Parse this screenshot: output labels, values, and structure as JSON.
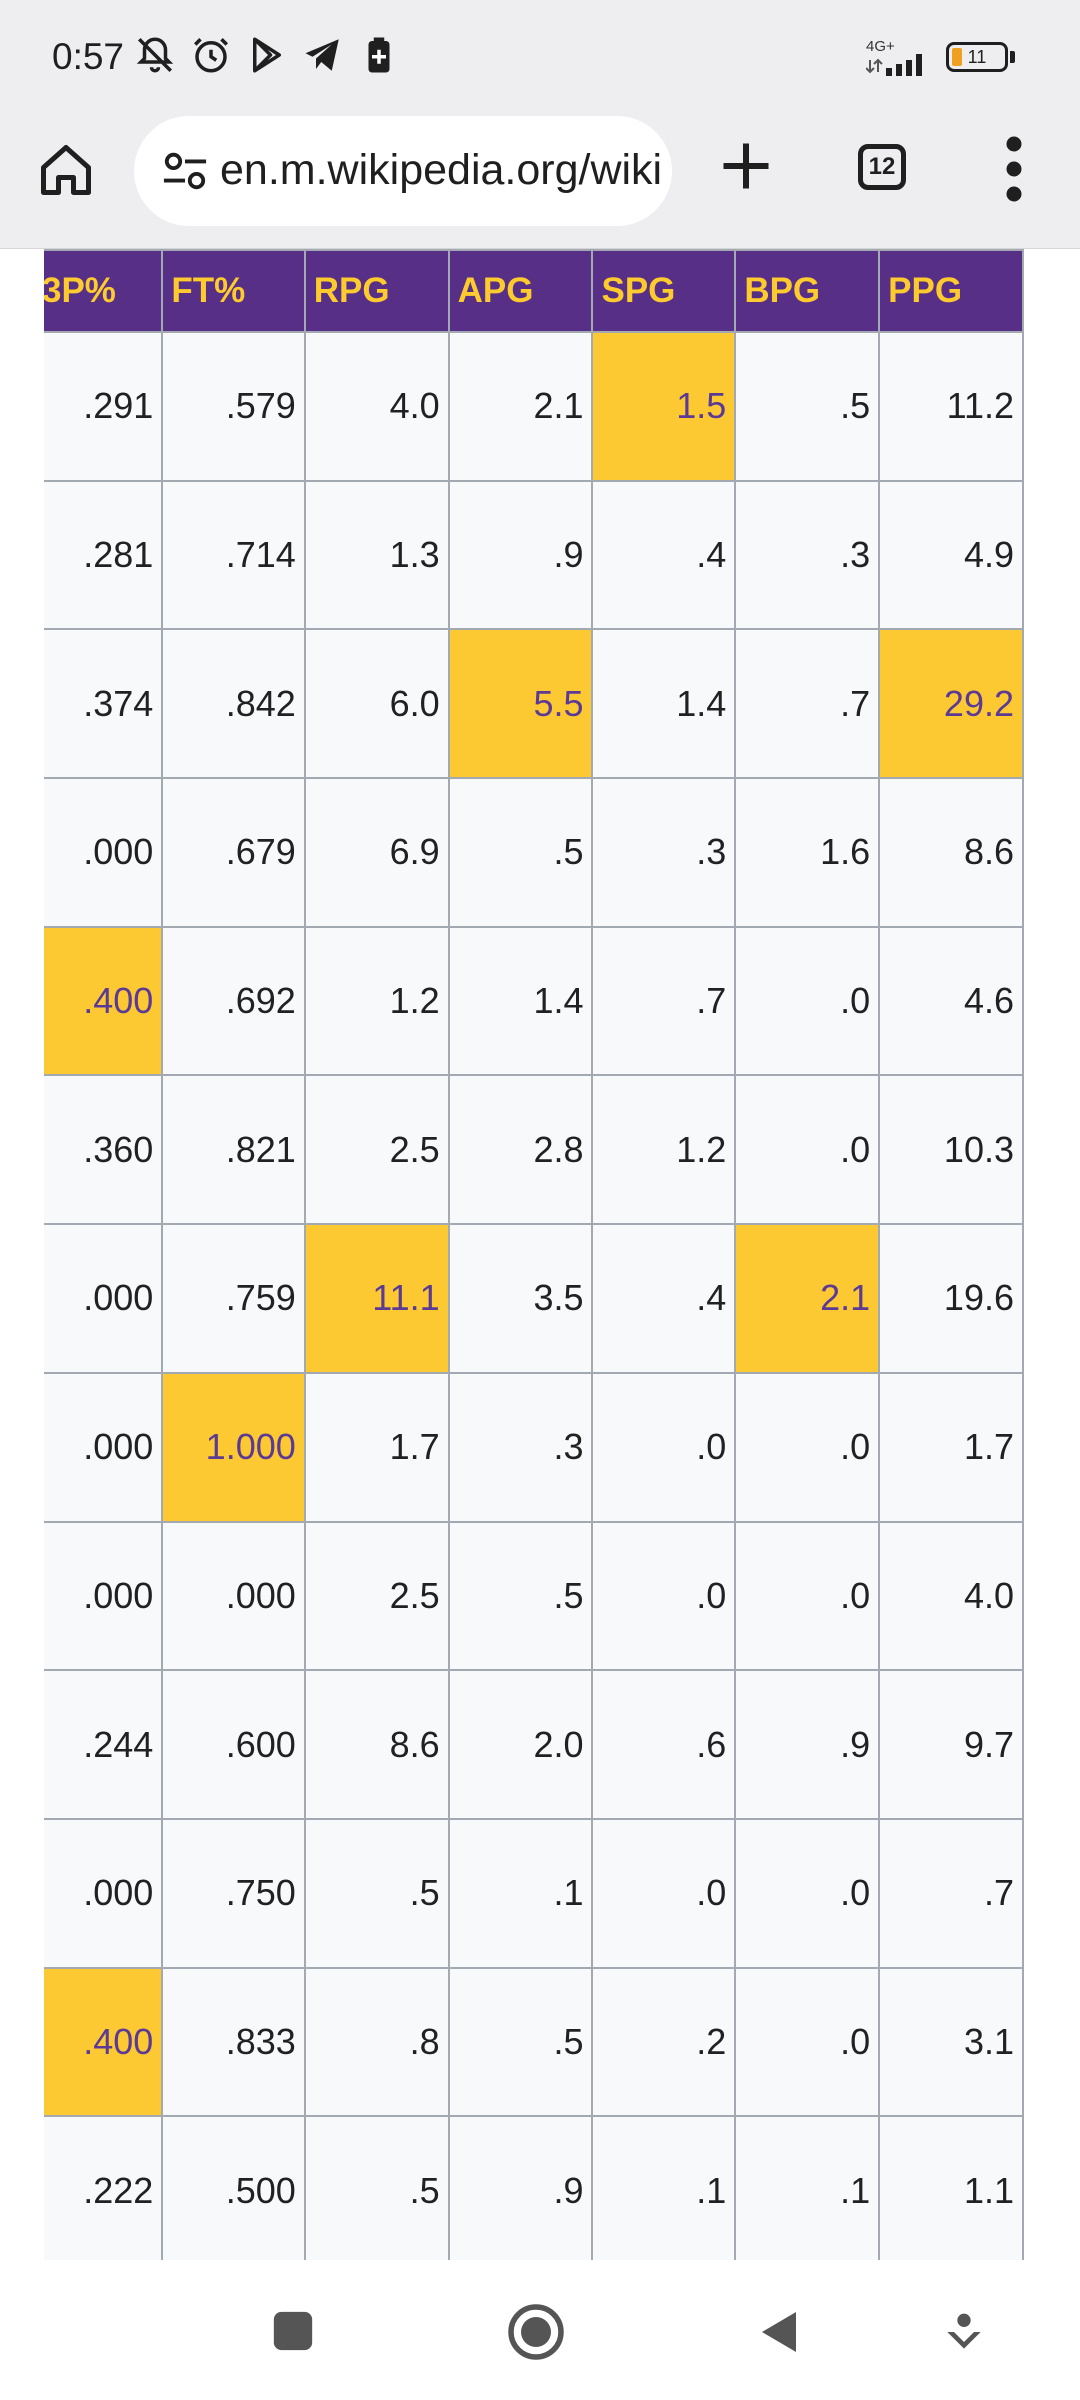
{
  "status_bar": {
    "time": "0:57",
    "network": "4G+",
    "battery_level": "11",
    "battery_fraction": 0.11,
    "icons": [
      "bell-off-icon",
      "alarm-icon",
      "play-store-icon",
      "telegram-icon",
      "battery-saver-icon",
      "signal-icon",
      "battery-icon"
    ]
  },
  "browser": {
    "url": "en.m.wikipedia.org/wiki",
    "tab_count": "12",
    "icons": [
      "home-icon",
      "site-settings-icon",
      "plus-icon",
      "tab-switcher-icon",
      "more-vert-icon"
    ]
  },
  "table": {
    "headers": [
      "3P%",
      "FT%",
      "RPG",
      "APG",
      "SPG",
      "BPG",
      "PPG"
    ],
    "rows": [
      [
        ".291",
        ".579",
        "4.0",
        "2.1",
        "1.5",
        ".5",
        "11.2"
      ],
      [
        ".281",
        ".714",
        "1.3",
        ".9",
        ".4",
        ".3",
        "4.9"
      ],
      [
        ".374",
        ".842",
        "6.0",
        "5.5",
        "1.4",
        ".7",
        "29.2"
      ],
      [
        ".000",
        ".679",
        "6.9",
        ".5",
        ".3",
        "1.6",
        "8.6"
      ],
      [
        ".400",
        ".692",
        "1.2",
        "1.4",
        ".7",
        ".0",
        "4.6"
      ],
      [
        ".360",
        ".821",
        "2.5",
        "2.8",
        "1.2",
        ".0",
        "10.3"
      ],
      [
        ".000",
        ".759",
        "11.1",
        "3.5",
        ".4",
        "2.1",
        "19.6"
      ],
      [
        ".000",
        "1.000",
        "1.7",
        ".3",
        ".0",
        ".0",
        "1.7"
      ],
      [
        ".000",
        ".000",
        "2.5",
        ".5",
        ".0",
        ".0",
        "4.0"
      ],
      [
        ".244",
        ".600",
        "8.6",
        "2.0",
        ".6",
        ".9",
        "9.7"
      ],
      [
        ".000",
        ".750",
        ".5",
        ".1",
        ".0",
        ".0",
        ".7"
      ],
      [
        ".400",
        ".833",
        ".8",
        ".5",
        ".2",
        ".0",
        "3.1"
      ],
      [
        ".222",
        ".500",
        ".5",
        ".9",
        ".1",
        ".1",
        "1.1"
      ]
    ],
    "highlighted": [
      [
        0,
        4
      ],
      [
        2,
        3
      ],
      [
        2,
        6
      ],
      [
        4,
        0
      ],
      [
        6,
        2
      ],
      [
        6,
        5
      ],
      [
        7,
        1
      ],
      [
        11,
        0
      ]
    ],
    "colors": {
      "header_bg": "#582f87",
      "header_text": "#fdcb2e",
      "highlight_bg": "#fdc933",
      "highlight_text": "#5b3a96",
      "cell_bg": "#f8f9fa"
    }
  },
  "nav_bar": {
    "icons": [
      "recents-icon",
      "home-circle-icon",
      "back-icon",
      "assist-icon"
    ]
  }
}
